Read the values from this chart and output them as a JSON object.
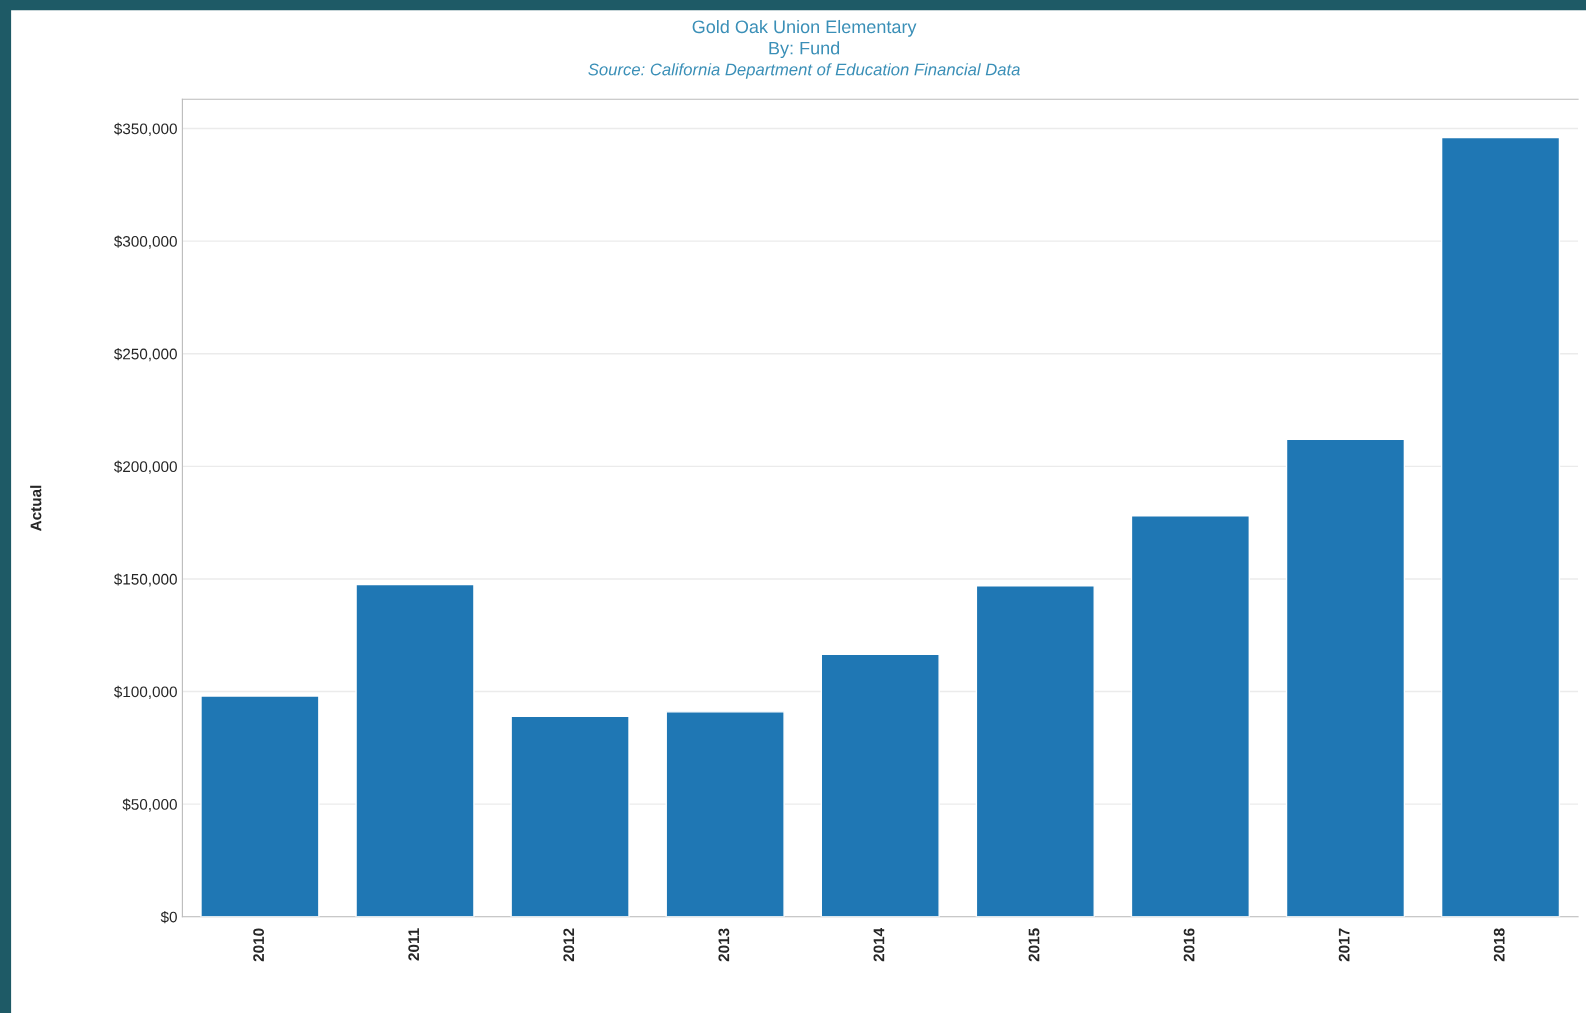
{
  "chart_data": {
    "type": "bar",
    "title": "Gold Oak Union Elementary",
    "subtitle": "By: Fund",
    "annotations": [
      "Source: California Department of Education Financial Data"
    ],
    "ylabel": "Actual",
    "categories": [
      "2010",
      "2011",
      "2012",
      "2013",
      "2014",
      "2015",
      "2016",
      "2017",
      "2018"
    ],
    "values": [
      98000,
      147500,
      89000,
      91000,
      116500,
      147000,
      178000,
      212000,
      346000
    ],
    "color": "#1f77b4",
    "ylim": [
      0,
      363000
    ],
    "yticks": [
      {
        "value": 0,
        "label": "$0"
      },
      {
        "value": 50000,
        "label": "$50,000"
      },
      {
        "value": 100000,
        "label": "$100,000"
      },
      {
        "value": 150000,
        "label": "$150,000"
      },
      {
        "value": 200000,
        "label": "$200,000"
      },
      {
        "value": 250000,
        "label": "$250,000"
      },
      {
        "value": 300000,
        "label": "$300,000"
      },
      {
        "value": 350000,
        "label": "$350,000"
      }
    ],
    "grid": "y"
  }
}
